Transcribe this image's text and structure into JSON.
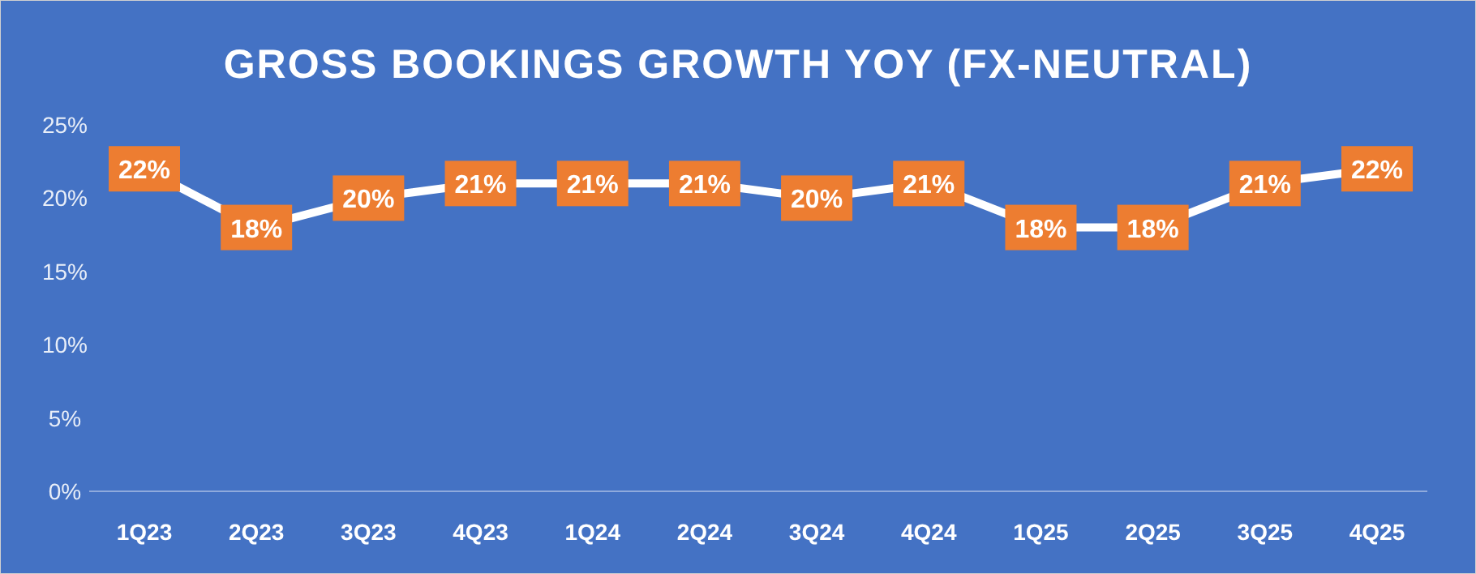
{
  "chart_data": {
    "type": "line",
    "title": "GROSS BOOKINGS GROWTH YOY (FX-NEUTRAL)",
    "categories": [
      "1Q23",
      "2Q23",
      "3Q23",
      "4Q23",
      "1Q24",
      "2Q24",
      "3Q24",
      "4Q24",
      "1Q25",
      "2Q25",
      "3Q25",
      "4Q25"
    ],
    "series": [
      {
        "color": "#ffffff",
        "values": [
          22,
          18,
          20,
          21,
          21,
          21,
          20,
          21,
          18,
          18,
          21,
          22
        ],
        "value_labels": [
          "22%",
          "18%",
          "20%",
          "21%",
          "21%",
          "21%",
          "20%",
          "21%",
          "18%",
          "18%",
          "21%",
          "22%"
        ]
      }
    ],
    "ylim": [
      0,
      25
    ],
    "yticks": [
      {
        "value": 0,
        "label": "0%"
      },
      {
        "value": 5,
        "label": "5%"
      },
      {
        "value": 10,
        "label": "10%"
      },
      {
        "value": 15,
        "label": "15%"
      },
      {
        "value": 20,
        "label": "20%"
      },
      {
        "value": 25,
        "label": "25%"
      }
    ],
    "grid": false,
    "marker": "square",
    "line_style": "solid"
  }
}
